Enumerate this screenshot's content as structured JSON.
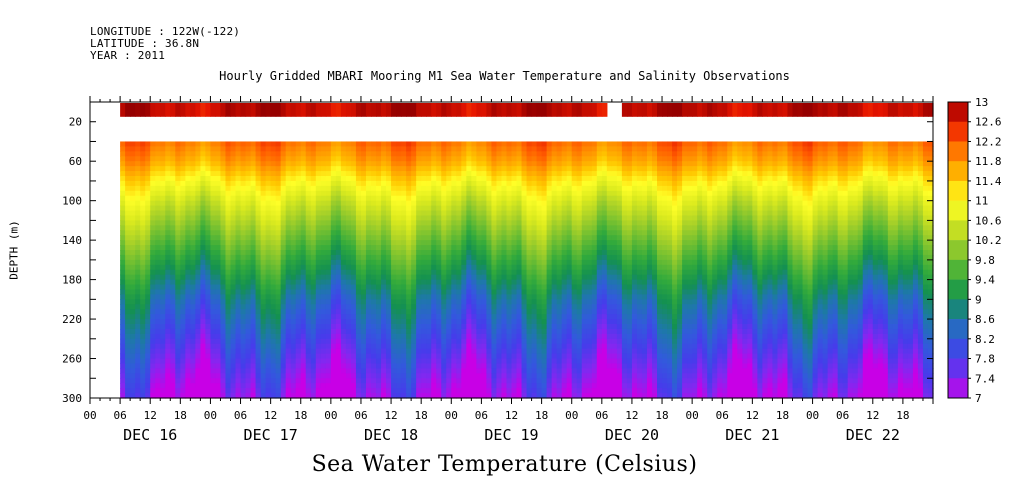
{
  "header": {
    "longitude": "LONGITUDE : 122W(-122)",
    "latitude": "LATITUDE : 36.8N",
    "year": "YEAR : 2011"
  },
  "chart_data": {
    "type": "heatmap",
    "title": "Hourly Gridded MBARI Mooring M1 Sea Water Temperature and Salinity Observations",
    "footer": "Sea Water Temperature (Celsius)",
    "ylabel": "DEPTH (m)",
    "xlabel": "",
    "x_hour_ticks": [
      "00",
      "06",
      "12",
      "18",
      "00",
      "06",
      "12",
      "18",
      "00",
      "06",
      "12",
      "18",
      "00",
      "06",
      "12",
      "18",
      "00",
      "06",
      "12",
      "18",
      "00",
      "06",
      "12",
      "18",
      "00",
      "06",
      "12",
      "18"
    ],
    "x_day_labels": [
      "DEC 16",
      "DEC 17",
      "DEC 18",
      "DEC 19",
      "DEC 20",
      "DEC 21",
      "DEC 22"
    ],
    "y_tick_labels": [
      "20",
      "60",
      "100",
      "140",
      "180",
      "220",
      "260",
      "300"
    ],
    "y_range": [
      0,
      300
    ],
    "y_reversed": true,
    "x_range_hours": [
      0,
      168
    ],
    "data_start_hour": 6,
    "colorbar": {
      "labels": [
        "13",
        "12.6",
        "12.2",
        "11.8",
        "11.4",
        "11",
        "10.6",
        "10.2",
        "9.8",
        "9.4",
        "9",
        "8.6",
        "8.2",
        "7.8",
        "7.4",
        "7"
      ],
      "range": [
        7,
        13
      ]
    },
    "depth_profile": {
      "depths": [
        10,
        40,
        60,
        80,
        100,
        120,
        140,
        160,
        180,
        200,
        220,
        240,
        260,
        280,
        300
      ],
      "temps": [
        12.7,
        12.1,
        11.7,
        11.1,
        10.6,
        10.2,
        9.8,
        9.4,
        9.0,
        8.6,
        8.3,
        8.0,
        7.7,
        7.4,
        7.1
      ]
    },
    "surface_gap_hours": [
      103,
      106
    ],
    "data_gap_depths": [
      15,
      40
    ],
    "grid": false
  }
}
